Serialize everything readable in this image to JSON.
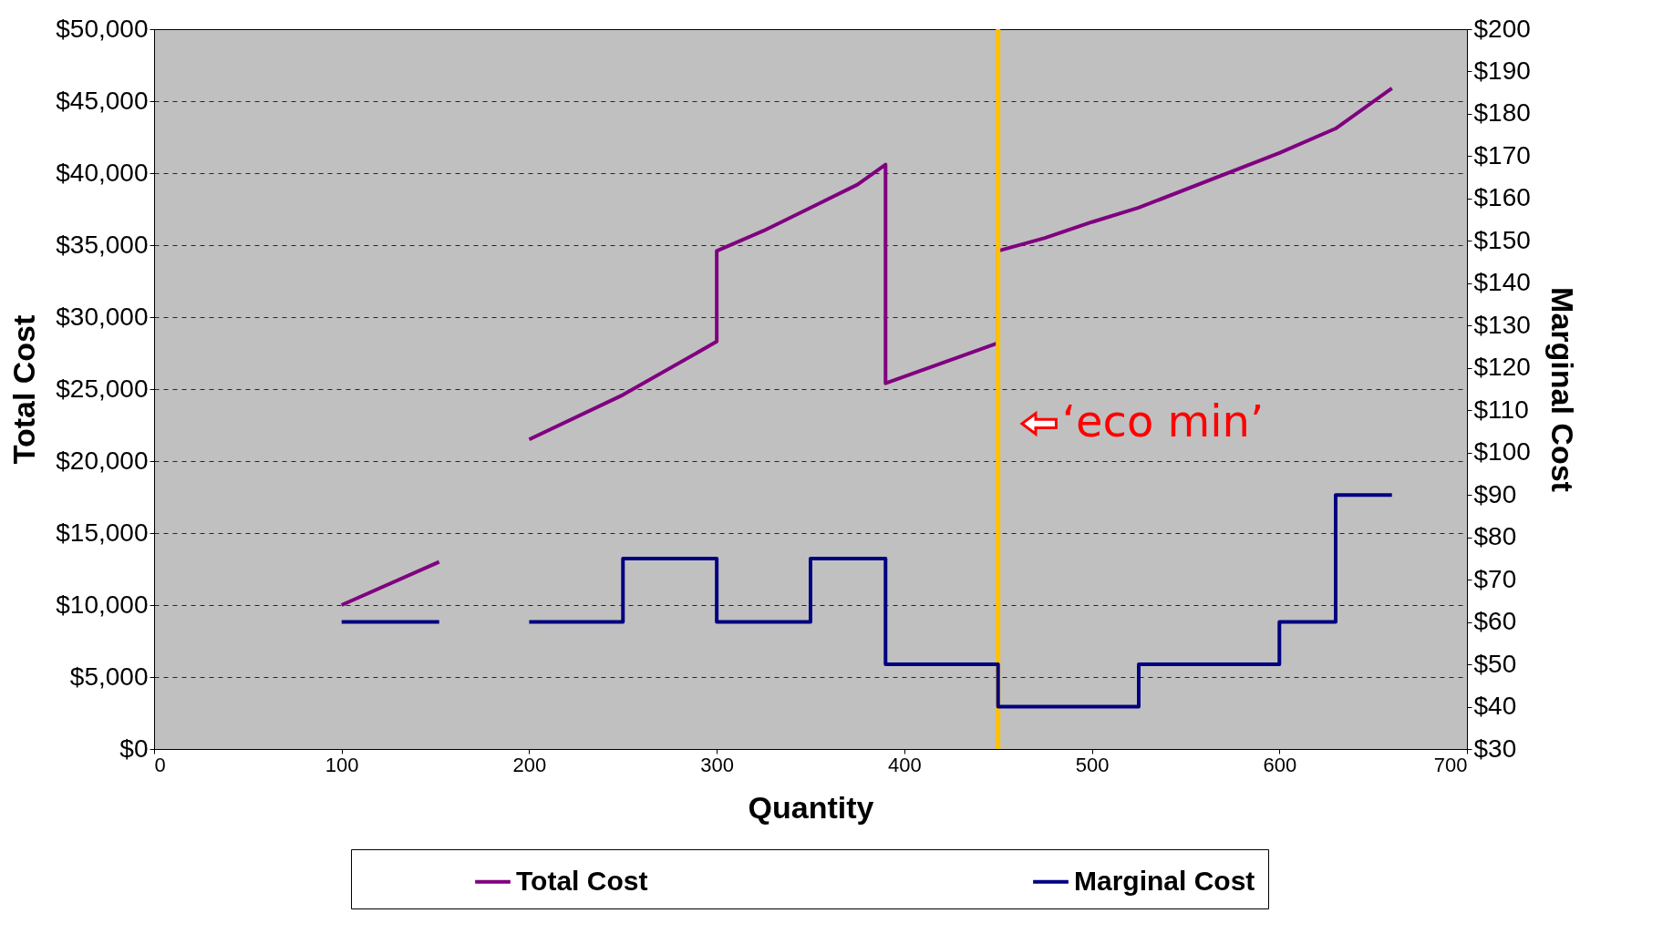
{
  "chart_data": {
    "type": "line",
    "xlabel": "Quantity",
    "ylabel": "Total Cost",
    "y2label": "Marginal Cost",
    "xlim": [
      0,
      700
    ],
    "xticks": [
      0,
      100,
      200,
      300,
      400,
      500,
      600,
      700
    ],
    "ylim": [
      0,
      50000
    ],
    "yticks": [
      {
        "value": 0,
        "label": "$0"
      },
      {
        "value": 5000,
        "label": "$5,000"
      },
      {
        "value": 10000,
        "label": "$10,000"
      },
      {
        "value": 15000,
        "label": "$15,000"
      },
      {
        "value": 20000,
        "label": "$20,000"
      },
      {
        "value": 25000,
        "label": "$25,000"
      },
      {
        "value": 30000,
        "label": "$30,000"
      },
      {
        "value": 35000,
        "label": "$35,000"
      },
      {
        "value": 40000,
        "label": "$40,000"
      },
      {
        "value": 45000,
        "label": "$45,000"
      },
      {
        "value": 50000,
        "label": "$50,000"
      }
    ],
    "y2lim": [
      30,
      200
    ],
    "y2ticks": [
      {
        "value": 30,
        "label": "$30"
      },
      {
        "value": 40,
        "label": "$40"
      },
      {
        "value": 50,
        "label": "$50"
      },
      {
        "value": 60,
        "label": "$60"
      },
      {
        "value": 70,
        "label": "$70"
      },
      {
        "value": 80,
        "label": "$80"
      },
      {
        "value": 90,
        "label": "$90"
      },
      {
        "value": 100,
        "label": "$100"
      },
      {
        "value": 110,
        "label": "$110"
      },
      {
        "value": 120,
        "label": "$120"
      },
      {
        "value": 130,
        "label": "$130"
      },
      {
        "value": 140,
        "label": "$140"
      },
      {
        "value": 150,
        "label": "$150"
      },
      {
        "value": 160,
        "label": "$160"
      },
      {
        "value": 170,
        "label": "$170"
      },
      {
        "value": 180,
        "label": "$180"
      },
      {
        "value": 190,
        "label": "$190"
      },
      {
        "value": 200,
        "label": "$200"
      }
    ],
    "series": [
      {
        "name": "Total Cost",
        "color": "#800080",
        "x": [
          100,
          152,
          null,
          200,
          250,
          300,
          300,
          325,
          350,
          375,
          390,
          390,
          450,
          450,
          475,
          500,
          525,
          600,
          630,
          660
        ],
        "values": [
          10000,
          13000,
          null,
          21500,
          24600,
          28300,
          34600,
          36000,
          37600,
          39200,
          40600,
          25400,
          28200,
          34600,
          35500,
          36600,
          37600,
          41400,
          43100,
          45900
        ]
      },
      {
        "name": "Marginal Cost",
        "type": "step",
        "axis": "y2",
        "color": "#000080",
        "x": [
          100,
          152,
          null,
          200,
          250,
          300,
          350,
          390,
          450,
          525,
          600,
          630,
          660
        ],
        "values": [
          60,
          60,
          null,
          60,
          75,
          60,
          75,
          50,
          40,
          50,
          60,
          90,
          90
        ]
      }
    ],
    "ref_lines": [
      {
        "axis": "x",
        "value": 450,
        "color": "#ffc000"
      }
    ],
    "annotations": [
      {
        "text": "‘eco min’",
        "x": 450,
        "y": 22600
      }
    ],
    "grid": "y",
    "legend": "bottom"
  }
}
